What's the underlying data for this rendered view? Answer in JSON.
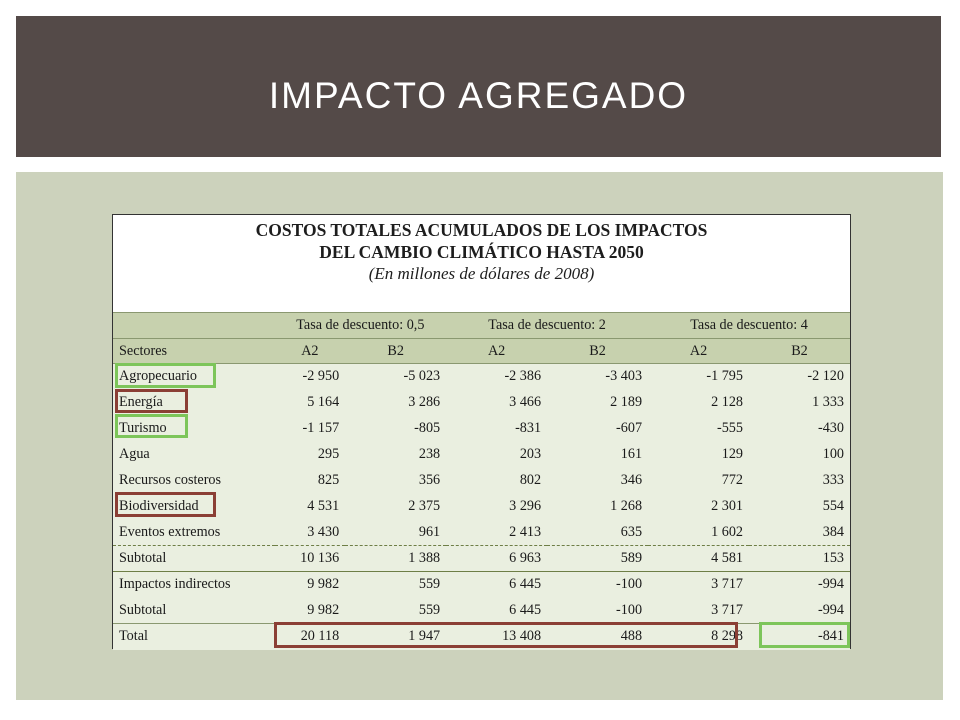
{
  "slide": {
    "title": "IMPACTO AGREGADO"
  },
  "table": {
    "title_line1": "COSTOS TOTALES ACUMULADOS DE LOS IMPACTOS",
    "title_line2": "DEL CAMBIO CLIMÁTICO HASTA 2050",
    "subtitle": "(En millones de dólares de 2008)",
    "rate_headers": [
      "Tasa de descuento: 0,5",
      "Tasa de descuento: 2",
      "Tasa de descuento: 4"
    ],
    "col_headers": [
      "Sectores",
      "A2",
      "B2",
      "A2",
      "B2",
      "A2",
      "B2"
    ],
    "rows": [
      {
        "label": "Agropecuario",
        "values": [
          "-2 950",
          "-5 023",
          "-2 386",
          "-3 403",
          "-1 795",
          "-2 120"
        ]
      },
      {
        "label": "Energía",
        "values": [
          "5 164",
          "3 286",
          "3 466",
          "2 189",
          "2 128",
          "1 333"
        ]
      },
      {
        "label": "Turismo",
        "values": [
          "-1 157",
          "-805",
          "-831",
          "-607",
          "-555",
          "-430"
        ]
      },
      {
        "label": "Agua",
        "values": [
          "295",
          "238",
          "203",
          "161",
          "129",
          "100"
        ]
      },
      {
        "label": "Recursos costeros",
        "values": [
          "825",
          "356",
          "802",
          "346",
          "772",
          "333"
        ]
      },
      {
        "label": "Biodiversidad",
        "values": [
          "4 531",
          "2 375",
          "3 296",
          "1 268",
          "2 301",
          "554"
        ]
      },
      {
        "label": "Eventos extremos",
        "values": [
          "3 430",
          "961",
          "2 413",
          "635",
          "1 602",
          "384"
        ]
      },
      {
        "label": "Subtotal",
        "values": [
          "10 136",
          "1 388",
          "6 963",
          "589",
          "4 581",
          "153"
        ]
      },
      {
        "label": "Impactos indirectos",
        "values": [
          "9 982",
          "559",
          "6 445",
          "-100",
          "3 717",
          "-994"
        ]
      },
      {
        "label": "Subtotal",
        "values": [
          "9 982",
          "559",
          "6 445",
          "-100",
          "3 717",
          "-994"
        ]
      },
      {
        "label": "Total",
        "values": [
          "20 118",
          "1 947",
          "13 408",
          "488",
          "8 298",
          "-841"
        ]
      }
    ]
  },
  "highlights": {
    "green_color": "#7dc55a",
    "brown_color": "#8b3f35",
    "green_rows": [
      "Agropecuario",
      "Turismo"
    ],
    "brown_rows": [
      "Energía",
      "Biodiversidad"
    ]
  }
}
